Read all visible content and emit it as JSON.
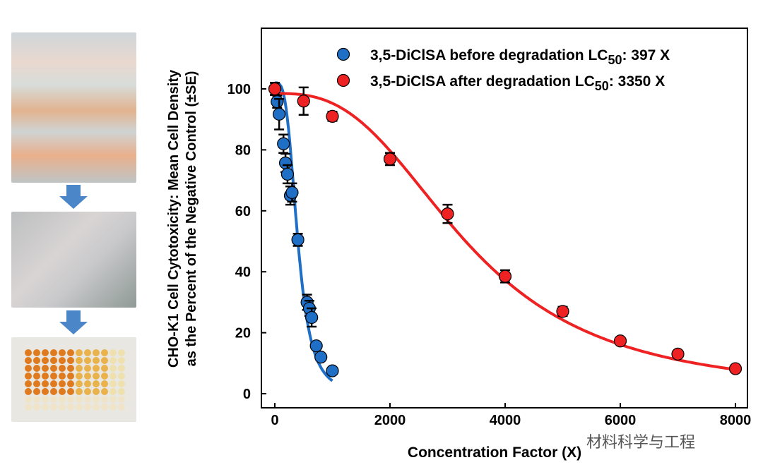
{
  "watermark": "材料科学与工程",
  "chart_data": {
    "type": "scatter",
    "xlabel": "Concentration Factor (X)",
    "ylabel_line1": "CHO-K1 Cell Cytotoxicity: Mean Cell Density",
    "ylabel_line2": "as the Percent of the Negative Control (±SE)",
    "xlim": [
      -200,
      8300
    ],
    "ylim": [
      0,
      108
    ],
    "xticks": [
      0,
      2000,
      4000,
      6000,
      8000
    ],
    "yticks": [
      0,
      20,
      40,
      60,
      80,
      100
    ],
    "legend_position": "top-right",
    "series": [
      {
        "name": "3,5-DiClSA before degradation",
        "lc_label": "LC",
        "lc_sub": "50",
        "lc_value": ": 397 X",
        "lc50": 397,
        "hill": 3.4,
        "color": "#1f6fc7",
        "x": [
          0,
          40,
          75,
          150,
          185,
          220,
          270,
          300,
          400,
          560,
          600,
          640,
          720,
          800,
          1000
        ],
        "y": [
          100,
          95.8,
          91.7,
          82,
          75.7,
          72,
          65,
          66,
          50.5,
          30,
          28,
          25,
          15.7,
          12,
          7.5
        ],
        "se": [
          2,
          2,
          5,
          3,
          3,
          3,
          3,
          3,
          2,
          2.5,
          2.5,
          3,
          1,
          1,
          1
        ]
      },
      {
        "name": "3,5-DiClSA after degradation",
        "lc_label": "LC",
        "lc_sub": "50",
        "lc_value": ": 3350 X",
        "lc50": 3350,
        "hill": 2.8,
        "color": "#ee2222",
        "x": [
          0,
          500,
          1000,
          2000,
          3000,
          4000,
          5000,
          6000,
          7000,
          8000
        ],
        "y": [
          100,
          96,
          91,
          77,
          59,
          38.5,
          27,
          17.3,
          13,
          8.2
        ],
        "se": [
          2,
          4.5,
          1.5,
          2,
          3,
          2,
          1.5,
          1,
          1,
          1
        ]
      }
    ]
  }
}
